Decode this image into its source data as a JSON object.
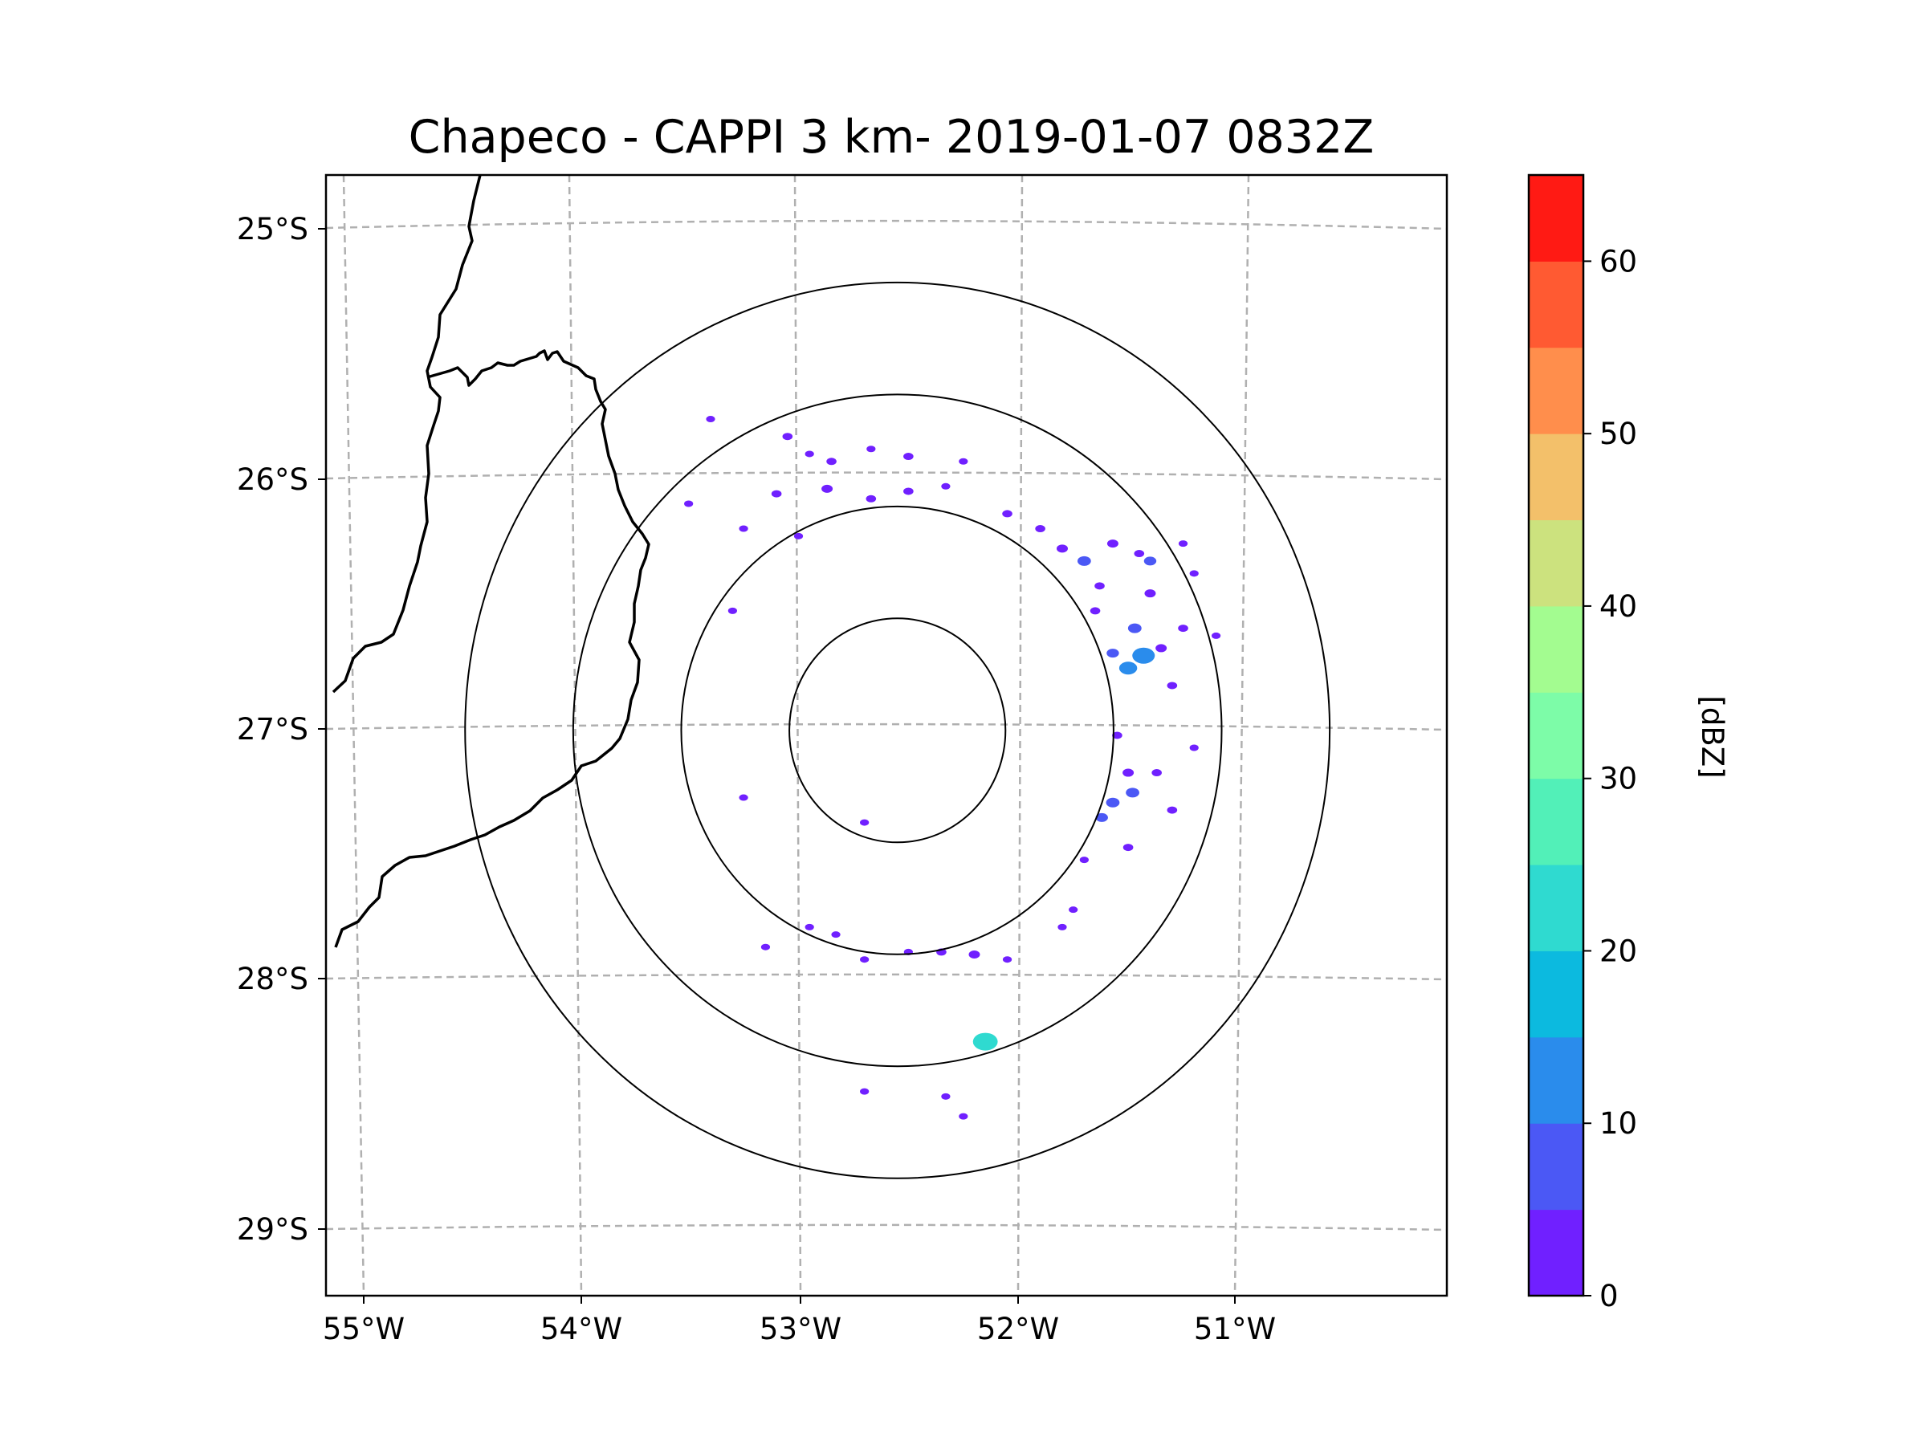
{
  "chart_data": {
    "type": "heatmap",
    "title": "Chapeco - CAPPI 3 km- 2019-01-07 0832Z",
    "product": "CAPPI 3 km",
    "station": "Chapeco",
    "datetime": "2019-01-07 0832Z",
    "lon_ticks": [
      "55°W",
      "54°W",
      "53°W",
      "52°W",
      "51°W"
    ],
    "lat_ticks": [
      "25°S",
      "26°S",
      "27°S",
      "28°S",
      "29°S"
    ],
    "lon_range": [
      -55.2,
      -50.1
    ],
    "lat_range": [
      -29.3,
      -24.8
    ],
    "radar_center": {
      "lon": -52.6,
      "lat": -27.03
    },
    "range_rings_km": [
      50,
      100,
      150,
      200
    ],
    "colorbar": {
      "label": "[dBZ]",
      "min": 0,
      "max": 65,
      "step": 5,
      "tick_values": [
        0,
        10,
        20,
        30,
        40,
        50,
        60
      ],
      "tick_labels": [
        "0",
        "10",
        "20",
        "30",
        "40",
        "50",
        "60"
      ],
      "colors": [
        "#7020ff",
        "#4b58f5",
        "#2a8cec",
        "#0cbadf",
        "#2fdad0",
        "#52f0b8",
        "#7dfca8",
        "#a3fc90",
        "#cce27e",
        "#f3c06a",
        "#ff8e4c",
        "#ff5a32",
        "#ff1a14"
      ]
    },
    "echoes": [
      {
        "lon": -53.1,
        "lat": -25.85,
        "dbz": 3
      },
      {
        "lon": -53.0,
        "lat": -25.92,
        "dbz": 2
      },
      {
        "lon": -53.45,
        "lat": -25.78,
        "dbz": 2
      },
      {
        "lon": -52.9,
        "lat": -25.95,
        "dbz": 3
      },
      {
        "lon": -52.72,
        "lat": -25.9,
        "dbz": 2
      },
      {
        "lon": -52.55,
        "lat": -25.93,
        "dbz": 3
      },
      {
        "lon": -52.3,
        "lat": -25.95,
        "dbz": 2
      },
      {
        "lon": -53.15,
        "lat": -26.08,
        "dbz": 3
      },
      {
        "lon": -52.92,
        "lat": -26.06,
        "dbz": 4
      },
      {
        "lon": -52.72,
        "lat": -26.1,
        "dbz": 3
      },
      {
        "lon": -52.55,
        "lat": -26.07,
        "dbz": 3
      },
      {
        "lon": -52.38,
        "lat": -26.05,
        "dbz": 2
      },
      {
        "lon": -53.55,
        "lat": -26.12,
        "dbz": 2
      },
      {
        "lon": -53.3,
        "lat": -26.22,
        "dbz": 2
      },
      {
        "lon": -52.1,
        "lat": -26.16,
        "dbz": 3
      },
      {
        "lon": -51.95,
        "lat": -26.22,
        "dbz": 3
      },
      {
        "lon": -51.85,
        "lat": -26.3,
        "dbz": 4
      },
      {
        "lon": -51.75,
        "lat": -26.35,
        "dbz": 6
      },
      {
        "lon": -51.62,
        "lat": -26.28,
        "dbz": 4
      },
      {
        "lon": -51.5,
        "lat": -26.32,
        "dbz": 3
      },
      {
        "lon": -51.45,
        "lat": -26.35,
        "dbz": 5
      },
      {
        "lon": -51.3,
        "lat": -26.28,
        "dbz": 2
      },
      {
        "lon": -51.68,
        "lat": -26.45,
        "dbz": 3
      },
      {
        "lon": -51.45,
        "lat": -26.48,
        "dbz": 4
      },
      {
        "lon": -51.25,
        "lat": -26.4,
        "dbz": 2
      },
      {
        "lon": -51.52,
        "lat": -26.62,
        "dbz": 6
      },
      {
        "lon": -51.48,
        "lat": -26.73,
        "dbz": 14
      },
      {
        "lon": -51.55,
        "lat": -26.78,
        "dbz": 10
      },
      {
        "lon": -51.4,
        "lat": -26.7,
        "dbz": 4
      },
      {
        "lon": -51.62,
        "lat": -26.72,
        "dbz": 5
      },
      {
        "lon": -51.3,
        "lat": -26.62,
        "dbz": 3
      },
      {
        "lon": -51.15,
        "lat": -26.65,
        "dbz": 2
      },
      {
        "lon": -51.35,
        "lat": -26.85,
        "dbz": 3
      },
      {
        "lon": -51.6,
        "lat": -27.05,
        "dbz": 3
      },
      {
        "lon": -51.55,
        "lat": -27.2,
        "dbz": 4
      },
      {
        "lon": -51.42,
        "lat": -27.2,
        "dbz": 3
      },
      {
        "lon": -51.25,
        "lat": -27.1,
        "dbz": 2
      },
      {
        "lon": -51.62,
        "lat": -27.32,
        "dbz": 6
      },
      {
        "lon": -51.67,
        "lat": -27.38,
        "dbz": 5
      },
      {
        "lon": -51.53,
        "lat": -27.28,
        "dbz": 6
      },
      {
        "lon": -51.35,
        "lat": -27.35,
        "dbz": 3
      },
      {
        "lon": -51.55,
        "lat": -27.5,
        "dbz": 3
      },
      {
        "lon": -51.75,
        "lat": -27.55,
        "dbz": 2
      },
      {
        "lon": -51.8,
        "lat": -27.75,
        "dbz": 2
      },
      {
        "lon": -52.25,
        "lat": -27.93,
        "dbz": 4
      },
      {
        "lon": -52.4,
        "lat": -27.92,
        "dbz": 3
      },
      {
        "lon": -52.55,
        "lat": -27.92,
        "dbz": 2
      },
      {
        "lon": -52.1,
        "lat": -27.95,
        "dbz": 2
      },
      {
        "lon": -52.75,
        "lat": -27.95,
        "dbz": 2
      },
      {
        "lon": -52.88,
        "lat": -27.85,
        "dbz": 2
      },
      {
        "lon": -53.0,
        "lat": -27.82,
        "dbz": 2
      },
      {
        "lon": -53.2,
        "lat": -27.9,
        "dbz": 2
      },
      {
        "lon": -52.2,
        "lat": -28.28,
        "dbz": 24
      },
      {
        "lon": -52.75,
        "lat": -28.48,
        "dbz": 2
      },
      {
        "lon": -52.38,
        "lat": -28.5,
        "dbz": 2
      },
      {
        "lon": -52.3,
        "lat": -28.58,
        "dbz": 2
      },
      {
        "lon": -53.05,
        "lat": -26.25,
        "dbz": 2
      },
      {
        "lon": -52.75,
        "lat": -27.4,
        "dbz": 2
      },
      {
        "lon": -51.85,
        "lat": -27.82,
        "dbz": 2
      },
      {
        "lon": -53.35,
        "lat": -26.55,
        "dbz": 2
      },
      {
        "lon": -53.3,
        "lat": -27.3,
        "dbz": 2
      },
      {
        "lon": -51.7,
        "lat": -26.55,
        "dbz": 3
      }
    ]
  }
}
